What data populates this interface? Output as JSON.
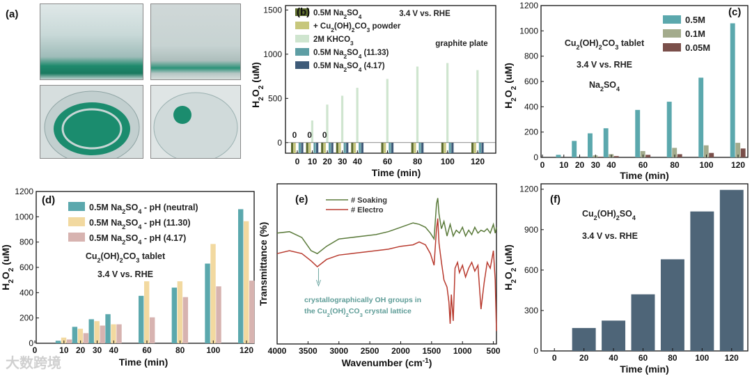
{
  "panels": {
    "a": {
      "label": "(a)"
    },
    "b": {
      "label": "(b)"
    },
    "c": {
      "label": "(c)"
    },
    "d": {
      "label": "(d)"
    },
    "e": {
      "label": "(e)"
    },
    "f": {
      "label": "(f)"
    }
  },
  "watermark": "大数跨境",
  "chart_data": [
    {
      "id": "b",
      "type": "bar",
      "title": "",
      "annotations": [
        "3.4 V vs. RHE",
        "graphite plate"
      ],
      "zero_labels": [
        "0",
        "0",
        "0"
      ],
      "xlabel": "Time (min)",
      "ylabel": "H2O2 (uM)",
      "categories": [
        "0",
        "10",
        "20",
        "30",
        "40",
        "60",
        "80",
        "100",
        "120"
      ],
      "yticks": [
        "0",
        "500",
        "1000",
        "1500"
      ],
      "ylim": [
        -120,
        1550
      ],
      "series": [
        {
          "name": "0.5M Na2SO4",
          "color": "#5c6b2c",
          "values": [
            -120,
            -120,
            -120,
            -120,
            -120,
            -120,
            -120,
            -120,
            -120
          ]
        },
        {
          "name": "+ Cu2(OH)2CO3 powder",
          "color": "#c7c77c",
          "values": [
            -120,
            -120,
            -120,
            -120,
            -120,
            -120,
            -120,
            -120,
            -120
          ]
        },
        {
          "name": "2M KHCO3",
          "color": "#cfe5cf",
          "values": [
            0,
            250,
            430,
            530,
            620,
            720,
            860,
            900,
            820
          ]
        },
        {
          "name": "0.5M Na2SO4 (11.33)",
          "color": "#5e9ea4",
          "values": [
            -120,
            -120,
            -120,
            -120,
            -120,
            -120,
            -120,
            -120,
            -120
          ]
        },
        {
          "name": "0.5M Na2SO4 (4.17)",
          "color": "#3d5a78",
          "values": [
            -120,
            -120,
            -120,
            -120,
            -120,
            -120,
            -120,
            -120,
            -120
          ]
        }
      ]
    },
    {
      "id": "c",
      "type": "bar",
      "annotations": [
        "Cu2(OH)2CO3 tablet",
        "3.4 V vs. RHE",
        "Na2SO4"
      ],
      "xlabel": "Time (min)",
      "ylabel": "H2O2 (uM)",
      "categories": [
        "10",
        "20",
        "30",
        "40",
        "60",
        "80",
        "100",
        "120"
      ],
      "xticks": [
        "0",
        "10",
        "20",
        "30",
        "40",
        "60",
        "80",
        "100",
        "120"
      ],
      "yticks": [
        "0",
        "200",
        "400",
        "600",
        "800",
        "1000",
        "1200"
      ],
      "ylim": [
        0,
        1200
      ],
      "series": [
        {
          "name": "0.5M",
          "color": "#5ba8ad",
          "values": [
            20,
            130,
            190,
            230,
            375,
            440,
            630,
            1060
          ]
        },
        {
          "name": "0.1M",
          "color": "#a3ab8c",
          "values": [
            0,
            0,
            15,
            25,
            50,
            75,
            95,
            115
          ]
        },
        {
          "name": "0.05M",
          "color": "#7a4f4a",
          "values": [
            0,
            0,
            5,
            10,
            20,
            25,
            35,
            70
          ]
        }
      ]
    },
    {
      "id": "d",
      "type": "bar",
      "annotations": [
        "Cu2(OH)2CO3 tablet",
        "3.4 V vs. RHE"
      ],
      "xlabel": "Time (min)",
      "ylabel": "H2O2 (uM)",
      "categories": [
        "10",
        "20",
        "30",
        "40",
        "60",
        "80",
        "100",
        "120"
      ],
      "xticks": [
        "0",
        "10",
        "20",
        "30",
        "40",
        "60",
        "80",
        "100",
        "120"
      ],
      "yticks": [
        "0",
        "200",
        "400",
        "600",
        "800",
        "1000",
        "1200"
      ],
      "ylim": [
        0,
        1200
      ],
      "series": [
        {
          "name": "0.5M Na2SO4 - pH (neutral)",
          "color": "#5ba8ad",
          "values": [
            20,
            130,
            190,
            230,
            375,
            440,
            630,
            1060
          ]
        },
        {
          "name": "0.5M Na2SO4 - pH (11.30)",
          "color": "#f2d9a0",
          "values": [
            45,
            115,
            175,
            150,
            490,
            490,
            785,
            965
          ]
        },
        {
          "name": "0.5M Na2SO4 - pH (4.17)",
          "color": "#d7b3b0",
          "values": [
            30,
            80,
            140,
            150,
            205,
            365,
            450,
            495
          ]
        }
      ]
    },
    {
      "id": "e",
      "type": "line",
      "xlabel": "Wavenumber (cm-1)",
      "ylabel": "Transmittance (%)",
      "xticks": [
        "4000",
        "3500",
        "3000",
        "2500",
        "2000",
        "1500",
        "1000",
        "500"
      ],
      "xlim": [
        4000,
        450
      ],
      "annotation": [
        "crystallographically OH groups in",
        "the Cu2(OH)2CO3 crystal lattice"
      ],
      "series": [
        {
          "name": "# Soaking",
          "color": "#5a7a3a",
          "points": [
            [
              4000,
              72
            ],
            [
              3800,
              73
            ],
            [
              3600,
              69
            ],
            [
              3450,
              60
            ],
            [
              3350,
              58
            ],
            [
              3200,
              63
            ],
            [
              3000,
              68
            ],
            [
              2800,
              69
            ],
            [
              2600,
              70
            ],
            [
              2400,
              71
            ],
            [
              2200,
              73
            ],
            [
              2000,
              76
            ],
            [
              1800,
              79
            ],
            [
              1700,
              78
            ],
            [
              1600,
              76
            ],
            [
              1520,
              72
            ],
            [
              1460,
              68
            ],
            [
              1420,
              92
            ],
            [
              1400,
              96
            ],
            [
              1380,
              85
            ],
            [
              1340,
              75
            ],
            [
              1300,
              80
            ],
            [
              1250,
              70
            ],
            [
              1200,
              78
            ],
            [
              1150,
              70
            ],
            [
              1100,
              74
            ],
            [
              1050,
              72
            ],
            [
              1000,
              76
            ],
            [
              950,
              70
            ],
            [
              900,
              74
            ],
            [
              850,
              71
            ],
            [
              800,
              76
            ],
            [
              750,
              72
            ],
            [
              700,
              74
            ],
            [
              650,
              73
            ],
            [
              600,
              75
            ],
            [
              550,
              72
            ],
            [
              500,
              78
            ],
            [
              470,
              72
            ],
            [
              450,
              76
            ]
          ]
        },
        {
          "name": "# Electro",
          "color": "#b83a2e",
          "points": [
            [
              4000,
              58
            ],
            [
              3800,
              60
            ],
            [
              3600,
              58
            ],
            [
              3450,
              53
            ],
            [
              3350,
              49
            ],
            [
              3200,
              54
            ],
            [
              3000,
              57
            ],
            [
              2800,
              58
            ],
            [
              2600,
              59
            ],
            [
              2400,
              60
            ],
            [
              2200,
              61
            ],
            [
              2000,
              63
            ],
            [
              1800,
              64
            ],
            [
              1700,
              66
            ],
            [
              1600,
              64
            ],
            [
              1520,
              58
            ],
            [
              1460,
              50
            ],
            [
              1420,
              75
            ],
            [
              1400,
              82
            ],
            [
              1380,
              65
            ],
            [
              1340,
              52
            ],
            [
              1300,
              40
            ],
            [
              1250,
              35
            ],
            [
              1220,
              25
            ],
            [
              1200,
              10
            ],
            [
              1180,
              30
            ],
            [
              1150,
              12
            ],
            [
              1120,
              48
            ],
            [
              1080,
              52
            ],
            [
              1050,
              45
            ],
            [
              1000,
              50
            ],
            [
              950,
              42
            ],
            [
              900,
              48
            ],
            [
              850,
              52
            ],
            [
              800,
              46
            ],
            [
              750,
              50
            ],
            [
              700,
              20
            ],
            [
              650,
              38
            ],
            [
              600,
              52
            ],
            [
              550,
              48
            ],
            [
              500,
              60
            ],
            [
              470,
              40
            ],
            [
              450,
              5
            ]
          ]
        }
      ]
    },
    {
      "id": "f",
      "type": "bar",
      "annotations": [
        "Cu2(OH)2SO4",
        "3.4 V vs. RHE"
      ],
      "xlabel": "Time (min)",
      "ylabel": "H2O2 (uM)",
      "categories": [
        "0",
        "20",
        "40",
        "60",
        "80",
        "100",
        "120"
      ],
      "yticks": [
        "0",
        "300",
        "600",
        "900",
        "1200"
      ],
      "ylim": [
        0,
        1240
      ],
      "series": [
        {
          "name": "H2O2",
          "color": "#4e6578",
          "values": [
            0,
            170,
            225,
            420,
            680,
            1035,
            1195
          ]
        }
      ]
    }
  ]
}
